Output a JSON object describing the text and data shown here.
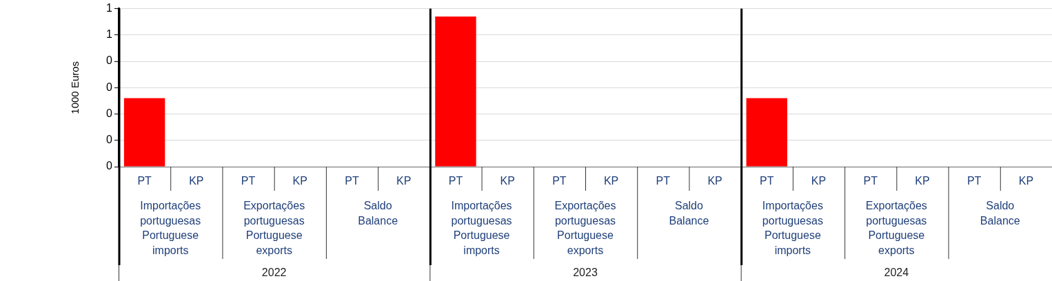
{
  "chart_data": {
    "type": "bar",
    "ylabel": "1000 Euros",
    "categories": [
      "PT",
      "KP",
      "PT",
      "KP",
      "PT",
      "KP",
      "PT",
      "KP",
      "PT",
      "KP",
      "PT",
      "KP",
      "PT",
      "KP",
      "PT",
      "KP",
      "PT",
      "KP"
    ],
    "values": [
      0.26,
      0,
      0,
      0,
      0,
      0,
      0.57,
      0,
      0,
      0,
      0,
      0,
      0.26,
      0,
      0,
      0,
      0,
      0
    ],
    "color": "#ff0000",
    "ylim": [
      0,
      0.6
    ],
    "yticks": [
      {
        "value": 0,
        "label": "0"
      },
      {
        "value": 0.1,
        "label": "0"
      },
      {
        "value": 0.2,
        "label": "0"
      },
      {
        "value": 0.3,
        "label": "0"
      },
      {
        "value": 0.4,
        "label": "0"
      },
      {
        "value": 0.5,
        "label": "1"
      },
      {
        "value": 0.6,
        "label": "1"
      }
    ],
    "annotations": [
      "Importações\nportuguesas\nPortuguese\nimports",
      "Exportações\nportuguesas\nPortuguese\nexports",
      "Saldo\nBalance",
      "Importações\nportuguesas\nPortuguese\nimports",
      "Exportações\nportuguesas\nPortuguese\nexports",
      "Saldo\nBalance",
      "Importações\nportuguesas\nPortuguese\nimports",
      "Exportações\nportuguesas\nPortuguese\nexports",
      "Saldo\nBalance",
      "2022",
      "2023",
      "2024"
    ],
    "grid": "y",
    "legend": false
  }
}
